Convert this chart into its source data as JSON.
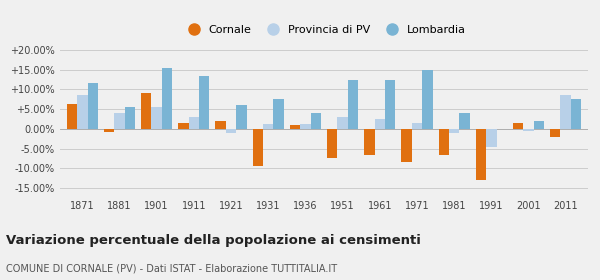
{
  "years": [
    1871,
    1881,
    1901,
    1911,
    1921,
    1931,
    1936,
    1951,
    1961,
    1971,
    1981,
    1991,
    2001,
    2011
  ],
  "cornale": [
    6.2,
    -0.8,
    9.0,
    1.5,
    2.0,
    -9.5,
    1.0,
    -7.5,
    -6.5,
    -8.5,
    -6.5,
    -13.0,
    1.5,
    -2.0
  ],
  "provincia_pv": [
    8.5,
    4.0,
    5.5,
    3.0,
    -1.0,
    1.2,
    1.2,
    3.0,
    2.5,
    1.5,
    -1.0,
    -4.5,
    -0.5,
    8.5
  ],
  "lombardia": [
    11.5,
    5.5,
    15.5,
    13.5,
    6.0,
    7.5,
    4.0,
    12.5,
    12.5,
    15.0,
    4.0,
    0.0,
    2.0,
    7.5
  ],
  "cornale_color": "#e07010",
  "provincia_color": "#b8d0e8",
  "lombardia_color": "#7ab4d4",
  "legend_labels": [
    "Cornale",
    "Provincia di PV",
    "Lombardia"
  ],
  "ylim": [
    -17,
    22
  ],
  "yticks": [
    -15,
    -10,
    -5,
    0,
    5,
    10,
    15,
    20
  ],
  "ytick_labels": [
    "-15.00%",
    "-10.00%",
    "-5.00%",
    "0.00%",
    "+5.00%",
    "+10.00%",
    "+15.00%",
    "+20.00%"
  ],
  "title": "Variazione percentuale della popolazione ai censimenti",
  "subtitle": "COMUNE DI CORNALE (PV) - Dati ISTAT - Elaborazione TUTTITALIA.IT",
  "background_color": "#f0f0f0",
  "grid_color": "#cccccc",
  "bar_width": 0.28,
  "figsize": [
    6.0,
    2.8
  ],
  "dpi": 100
}
